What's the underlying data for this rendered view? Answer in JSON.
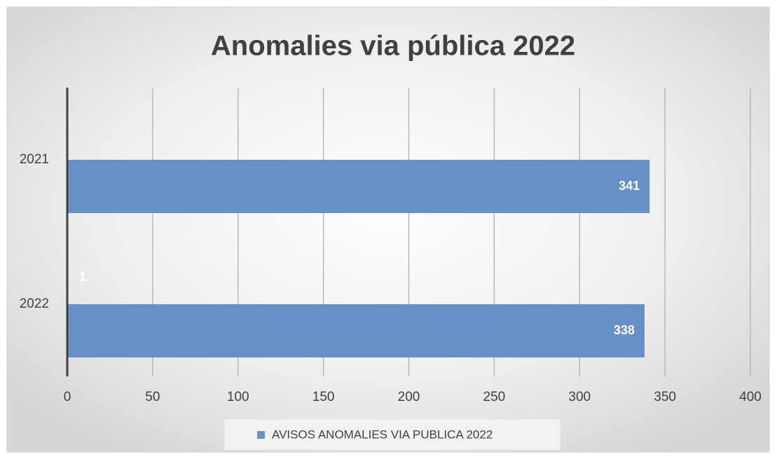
{
  "chart_data": {
    "type": "bar",
    "orientation": "horizontal",
    "title": "Anomalies via pública 2022",
    "categories": [
      "2021",
      "2022"
    ],
    "series": [
      {
        "name": "AVISOS ANOMALIES VIA PUBLICA 2022",
        "color": "#6690c6",
        "values": [
          341,
          338
        ]
      }
    ],
    "annotations": [
      {
        "text": "1"
      }
    ],
    "xlim": [
      0,
      400
    ],
    "xticks": [
      0,
      50,
      100,
      150,
      200,
      250,
      300,
      350,
      400
    ],
    "grid": true,
    "legend": "bottom",
    "data_labels": true
  }
}
